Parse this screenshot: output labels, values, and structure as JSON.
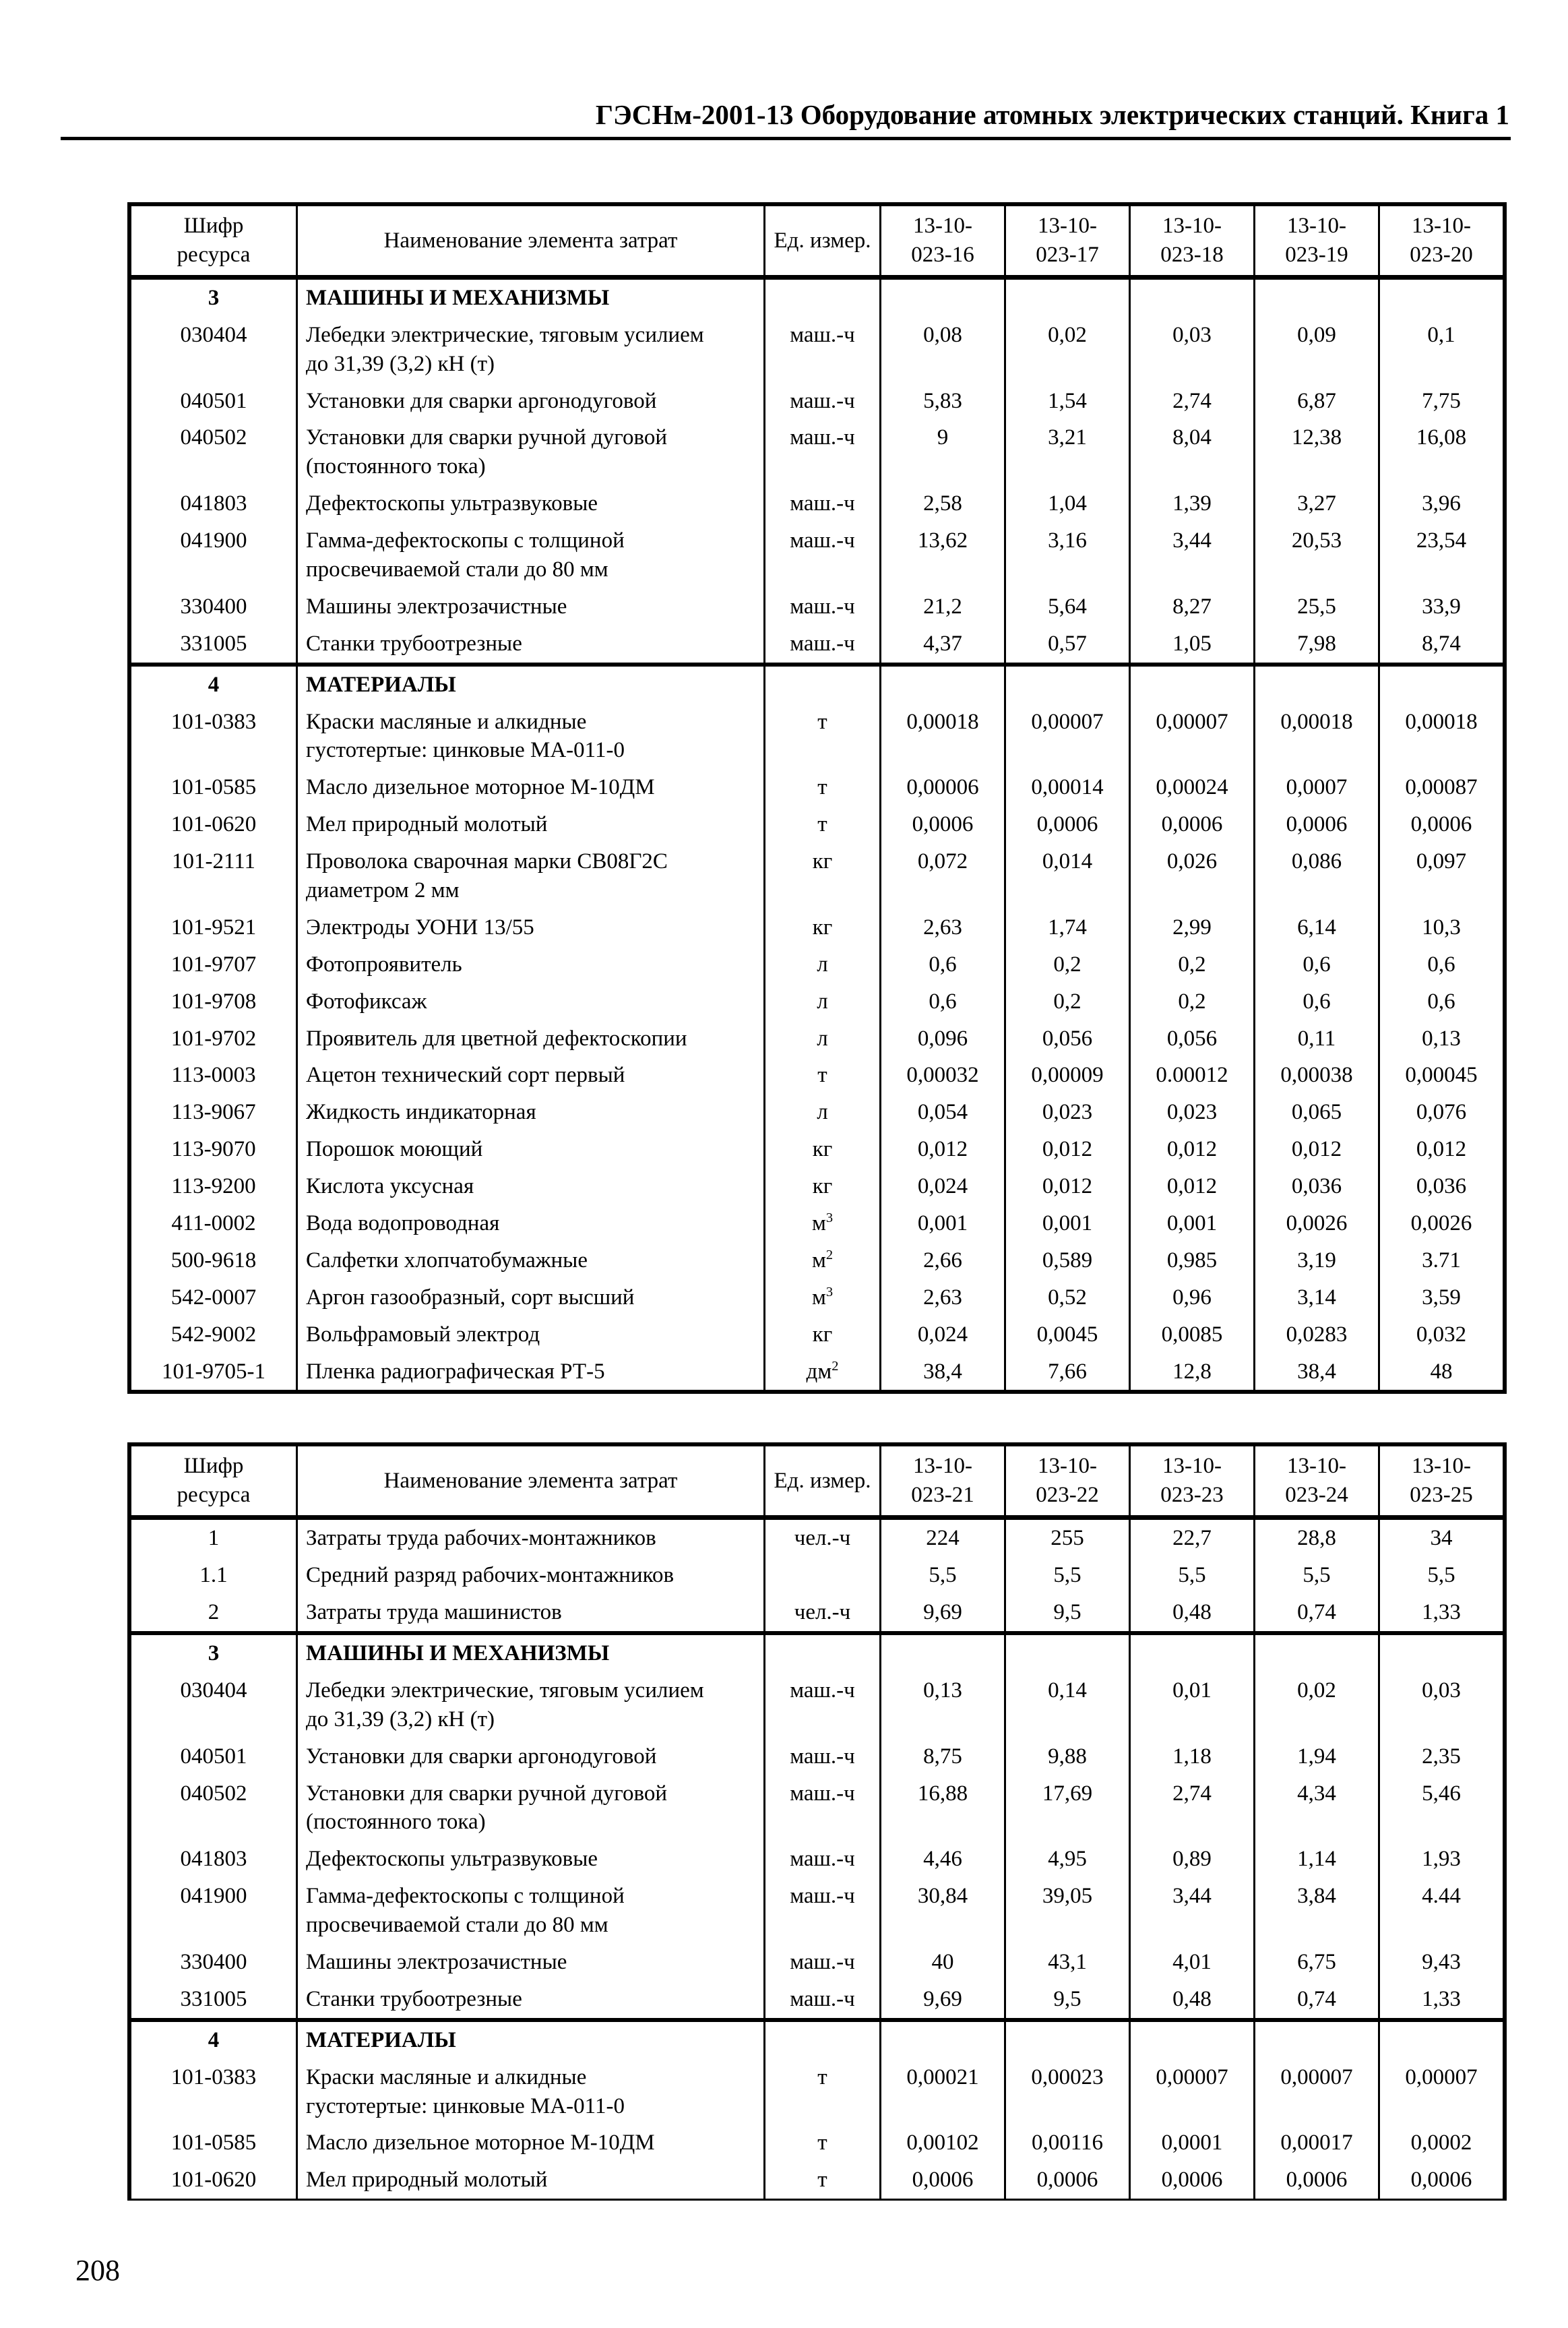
{
  "page": {
    "running_header": "ГЭСНм-2001-13 Оборудование атомных электрических станций. Книга 1",
    "page_number": "208"
  },
  "tables": [
    {
      "headers": {
        "code": "Шифр\nресурса",
        "name": "Наименование элемента затрат",
        "unit": "Ед. измер.",
        "norms": [
          "13-10-\n023-16",
          "13-10-\n023-17",
          "13-10-\n023-18",
          "13-10-\n023-19",
          "13-10-\n023-20"
        ]
      },
      "rows": [
        {
          "code": "3",
          "name": "МАШИНЫ И МЕХАНИЗМЫ",
          "unit": "",
          "values": [
            "",
            "",
            "",
            "",
            ""
          ],
          "section": true
        },
        {
          "code": "030404",
          "name": "Лебедки электрические, тяговым усилием\nдо 31,39 (3,2) кН (т)",
          "unit": "маш.-ч",
          "values": [
            "0,08",
            "0,02",
            "0,03",
            "0,09",
            "0,1"
          ]
        },
        {
          "code": "040501",
          "name": "Установки для сварки аргонодуговой",
          "unit": "маш.-ч",
          "values": [
            "5,83",
            "1,54",
            "2,74",
            "6,87",
            "7,75"
          ]
        },
        {
          "code": "040502",
          "name": "Установки для сварки ручной дуговой\n(постоянного тока)",
          "unit": "маш.-ч",
          "values": [
            "9",
            "3,21",
            "8,04",
            "12,38",
            "16,08"
          ]
        },
        {
          "code": "041803",
          "name": "Дефектоскопы ультразвуковые",
          "unit": "маш.-ч",
          "values": [
            "2,58",
            "1,04",
            "1,39",
            "3,27",
            "3,96"
          ]
        },
        {
          "code": "041900",
          "name": "Гамма-дефектоскопы с толщиной\nпросвечиваемой стали до 80 мм",
          "unit": "маш.-ч",
          "values": [
            "13,62",
            "3,16",
            "3,44",
            "20,53",
            "23,54"
          ]
        },
        {
          "code": "330400",
          "name": "Машины электрозачистные",
          "unit": "маш.-ч",
          "values": [
            "21,2",
            "5,64",
            "8,27",
            "25,5",
            "33,9"
          ]
        },
        {
          "code": "331005",
          "name": "Станки трубоотрезные",
          "unit": "маш.-ч",
          "values": [
            "4,37",
            "0,57",
            "1,05",
            "7,98",
            "8,74"
          ]
        },
        {
          "code": "4",
          "name": "МАТЕРИАЛЫ",
          "unit": "",
          "values": [
            "",
            "",
            "",
            "",
            ""
          ],
          "section": true
        },
        {
          "code": "101-0383",
          "name": "Краски масляные и алкидные\nгустотертые: цинковые МА-011-0",
          "unit": "т",
          "values": [
            "0,00018",
            "0,00007",
            "0,00007",
            "0,00018",
            "0,00018"
          ]
        },
        {
          "code": "101-0585",
          "name": "Масло дизельное моторное М-10ДМ",
          "unit": "т",
          "values": [
            "0,00006",
            "0,00014",
            "0,00024",
            "0,0007",
            "0,00087"
          ]
        },
        {
          "code": "101-0620",
          "name": "Мел природный молотый",
          "unit": "т",
          "values": [
            "0,0006",
            "0,0006",
            "0,0006",
            "0,0006",
            "0,0006"
          ]
        },
        {
          "code": "101-2111",
          "name": "Проволока сварочная марки СВ08Г2С\nдиаметром 2 мм",
          "unit": "кг",
          "values": [
            "0,072",
            "0,014",
            "0,026",
            "0,086",
            "0,097"
          ]
        },
        {
          "code": "101-9521",
          "name": "Электроды УОНИ 13/55",
          "unit": "кг",
          "values": [
            "2,63",
            "1,74",
            "2,99",
            "6,14",
            "10,3"
          ]
        },
        {
          "code": "101-9707",
          "name": "Фотопроявитель",
          "unit": "л",
          "values": [
            "0,6",
            "0,2",
            "0,2",
            "0,6",
            "0,6"
          ]
        },
        {
          "code": "101-9708",
          "name": "Фотофиксаж",
          "unit": "л",
          "values": [
            "0,6",
            "0,2",
            "0,2",
            "0,6",
            "0,6"
          ]
        },
        {
          "code": "101-9702",
          "name": "Проявитель для цветной дефектоскопии",
          "unit": "л",
          "values": [
            "0,096",
            "0,056",
            "0,056",
            "0,11",
            "0,13"
          ]
        },
        {
          "code": "113-0003",
          "name": "Ацетон технический сорт первый",
          "unit": "т",
          "values": [
            "0,00032",
            "0,00009",
            "0.00012",
            "0,00038",
            "0,00045"
          ]
        },
        {
          "code": "113-9067",
          "name": "Жидкость индикаторная",
          "unit": "л",
          "values": [
            "0,054",
            "0,023",
            "0,023",
            "0,065",
            "0,076"
          ]
        },
        {
          "code": "113-9070",
          "name": "Порошок моющий",
          "unit": "кг",
          "values": [
            "0,012",
            "0,012",
            "0,012",
            "0,012",
            "0,012"
          ]
        },
        {
          "code": "113-9200",
          "name": "Кислота уксусная",
          "unit": "кг",
          "values": [
            "0,024",
            "0,012",
            "0,012",
            "0,036",
            "0,036"
          ]
        },
        {
          "code": "411-0002",
          "name": "Вода водопроводная",
          "unit": "м3",
          "values": [
            "0,001",
            "0,001",
            "0,001",
            "0,0026",
            "0,0026"
          ]
        },
        {
          "code": "500-9618",
          "name": "Салфетки хлопчатобумажные",
          "unit": "м2",
          "values": [
            "2,66",
            "0,589",
            "0,985",
            "3,19",
            "3.71"
          ]
        },
        {
          "code": "542-0007",
          "name": "Аргон газообразный, сорт высший",
          "unit": "м3",
          "values": [
            "2,63",
            "0,52",
            "0,96",
            "3,14",
            "3,59"
          ]
        },
        {
          "code": "542-9002",
          "name": "Вольфрамовый электрод",
          "unit": "кг",
          "values": [
            "0,024",
            "0,0045",
            "0,0085",
            "0,0283",
            "0,032"
          ]
        },
        {
          "code": "101-9705-1",
          "name": "Пленка радиографическая РТ-5",
          "unit": "дм2",
          "values": [
            "38,4",
            "7,66",
            "12,8",
            "38,4",
            "48"
          ]
        }
      ]
    },
    {
      "headers": {
        "code": "Шифр\nресурса",
        "name": "Наименование элемента затрат",
        "unit": "Ед. измер.",
        "norms": [
          "13-10-\n023-21",
          "13-10-\n023-22",
          "13-10-\n023-23",
          "13-10-\n023-24",
          "13-10-\n023-25"
        ]
      },
      "rows": [
        {
          "code": "1",
          "name": "Затраты труда рабочих-монтажников",
          "unit": "чел.-ч",
          "values": [
            "224",
            "255",
            "22,7",
            "28,8",
            "34"
          ]
        },
        {
          "code": "1.1",
          "name": "Средний разряд рабочих-монтажников",
          "unit": "",
          "values": [
            "5,5",
            "5,5",
            "5,5",
            "5,5",
            "5,5"
          ]
        },
        {
          "code": "2",
          "name": "Затраты труда машинистов",
          "unit": "чел.-ч",
          "values": [
            "9,69",
            "9,5",
            "0,48",
            "0,74",
            "1,33"
          ]
        },
        {
          "code": "3",
          "name": "МАШИНЫ И МЕХАНИЗМЫ",
          "unit": "",
          "values": [
            "",
            "",
            "",
            "",
            ""
          ],
          "section": true
        },
        {
          "code": "030404",
          "name": "Лебедки электрические, тяговым усилием\nдо 31,39 (3,2) кН (т)",
          "unit": "маш.-ч",
          "values": [
            "0,13",
            "0,14",
            "0,01",
            "0,02",
            "0,03"
          ]
        },
        {
          "code": "040501",
          "name": "Установки для сварки аргонодуговой",
          "unit": "маш.-ч",
          "values": [
            "8,75",
            "9,88",
            "1,18",
            "1,94",
            "2,35"
          ]
        },
        {
          "code": "040502",
          "name": "Установки для сварки ручной дуговой\n(постоянного тока)",
          "unit": "маш.-ч",
          "values": [
            "16,88",
            "17,69",
            "2,74",
            "4,34",
            "5,46"
          ]
        },
        {
          "code": "041803",
          "name": "Дефектоскопы ультразвуковые",
          "unit": "маш.-ч",
          "values": [
            "4,46",
            "4,95",
            "0,89",
            "1,14",
            "1,93"
          ]
        },
        {
          "code": "041900",
          "name": "Гамма-дефектоскопы с толщиной\nпросвечиваемой стали до 80 мм",
          "unit": "маш.-ч",
          "values": [
            "30,84",
            "39,05",
            "3,44",
            "3,84",
            "4.44"
          ]
        },
        {
          "code": "330400",
          "name": "Машины электрозачистные",
          "unit": "маш.-ч",
          "values": [
            "40",
            "43,1",
            "4,01",
            "6,75",
            "9,43"
          ]
        },
        {
          "code": "331005",
          "name": "Станки трубоотрезные",
          "unit": "маш.-ч",
          "values": [
            "9,69",
            "9,5",
            "0,48",
            "0,74",
            "1,33"
          ]
        },
        {
          "code": "4",
          "name": "МАТЕРИАЛЫ",
          "unit": "",
          "values": [
            "",
            "",
            "",
            "",
            ""
          ],
          "section": true
        },
        {
          "code": "101-0383",
          "name": "Краски масляные и алкидные\nгустотертые: цинковые МА-011-0",
          "unit": "т",
          "values": [
            "0,00021",
            "0,00023",
            "0,00007",
            "0,00007",
            "0,00007"
          ]
        },
        {
          "code": "101-0585",
          "name": "Масло дизельное моторное М-10ДМ",
          "unit": "т",
          "values": [
            "0,00102",
            "0,00116",
            "0,0001",
            "0,00017",
            "0,0002"
          ]
        },
        {
          "code": "101-0620",
          "name": "Мел природный молотый",
          "unit": "т",
          "values": [
            "0,0006",
            "0,0006",
            "0,0006",
            "0,0006",
            "0,0006"
          ]
        }
      ]
    }
  ]
}
